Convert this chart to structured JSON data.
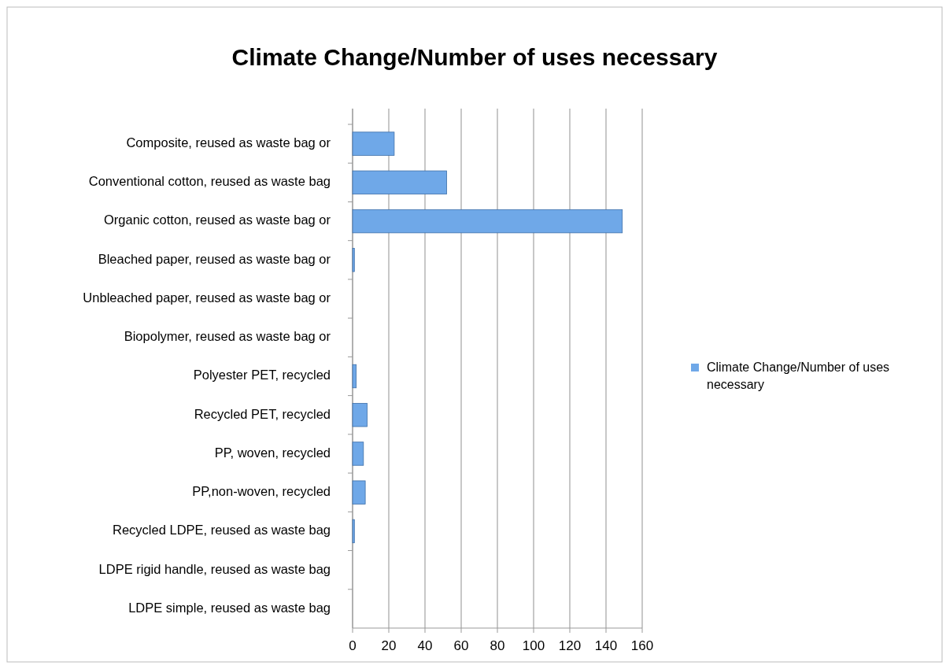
{
  "chart_data": {
    "type": "bar",
    "orientation": "horizontal",
    "title": "Climate Change/Number of uses necessary",
    "categories": [
      "Composite, reused as waste bag or",
      "Conventional cotton, reused as waste bag",
      "Organic cotton, reused as waste bag or",
      "Bleached paper, reused as waste bag or",
      "Unbleached paper, reused as waste bag or",
      "Biopolymer, reused as waste bag or",
      "Polyester PET, recycled",
      "Recycled PET, recycled",
      "PP, woven, recycled",
      "PP,non-woven, recycled",
      "Recycled LDPE, reused as waste bag",
      "LDPE rigid handle, reused as waste bag",
      "LDPE simple, reused as waste bag"
    ],
    "series": [
      {
        "name": "Climate Change/Number of uses necessary",
        "color": "#6fa8e8",
        "values": [
          23,
          52,
          149,
          1,
          0,
          0,
          2,
          8,
          6,
          7,
          1,
          0,
          0
        ]
      }
    ],
    "xlim": [
      0,
      160
    ],
    "xticks": [
      0,
      20,
      40,
      60,
      80,
      100,
      120,
      140,
      160
    ],
    "grid": "x",
    "legend": "right"
  }
}
